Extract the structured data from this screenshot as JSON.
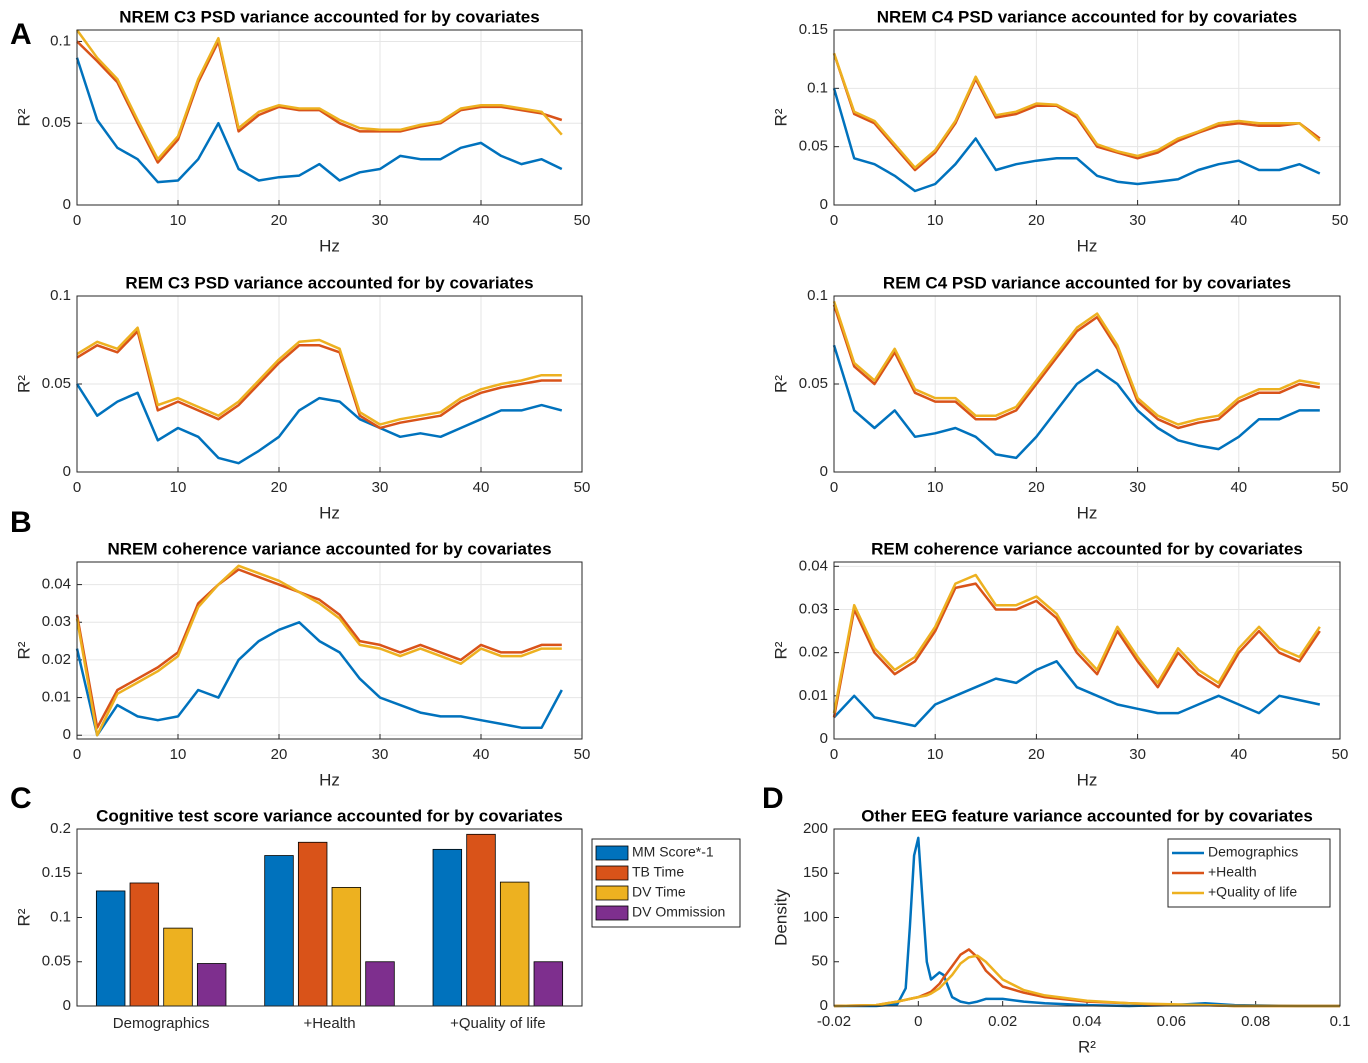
{
  "panel_labels": [
    "A",
    "B",
    "C",
    "D"
  ],
  "chart_data": [
    {
      "type": "line",
      "title": "NREM C3 PSD variance accounted for by covariates",
      "xlabel": "Hz",
      "ylabel": "R²",
      "grid": true,
      "xlim": [
        0,
        50
      ],
      "xticks": [
        0,
        10,
        20,
        30,
        40,
        50
      ],
      "ylim": [
        0,
        0.107
      ],
      "yticks": [
        0,
        0.05,
        0.1
      ],
      "x": [
        0,
        2,
        4,
        6,
        8,
        10,
        12,
        14,
        16,
        18,
        20,
        22,
        24,
        26,
        28,
        30,
        32,
        34,
        36,
        38,
        40,
        42,
        44,
        46,
        48
      ],
      "series": [
        {
          "color": "#0072BD",
          "values": [
            0.09,
            0.052,
            0.035,
            0.028,
            0.014,
            0.015,
            0.028,
            0.05,
            0.022,
            0.015,
            0.017,
            0.018,
            0.025,
            0.015,
            0.02,
            0.022,
            0.03,
            0.028,
            0.028,
            0.035,
            0.038,
            0.03,
            0.025,
            0.028,
            0.022
          ]
        },
        {
          "color": "#D95319",
          "values": [
            0.1,
            0.088,
            0.075,
            0.05,
            0.026,
            0.04,
            0.075,
            0.1,
            0.045,
            0.055,
            0.06,
            0.058,
            0.058,
            0.05,
            0.045,
            0.045,
            0.045,
            0.048,
            0.05,
            0.058,
            0.06,
            0.06,
            0.058,
            0.056,
            0.052
          ]
        },
        {
          "color": "#EDB120",
          "values": [
            0.107,
            0.09,
            0.077,
            0.052,
            0.028,
            0.042,
            0.077,
            0.102,
            0.047,
            0.057,
            0.061,
            0.059,
            0.059,
            0.052,
            0.047,
            0.046,
            0.046,
            0.049,
            0.051,
            0.059,
            0.061,
            0.061,
            0.059,
            0.057,
            0.043
          ]
        }
      ]
    },
    {
      "type": "line",
      "title": "NREM C4 PSD variance accounted for by covariates",
      "xlabel": "Hz",
      "ylabel": "R²",
      "grid": true,
      "xlim": [
        0,
        50
      ],
      "xticks": [
        0,
        10,
        20,
        30,
        40,
        50
      ],
      "ylim": [
        0,
        0.15
      ],
      "yticks": [
        0,
        0.05,
        0.1,
        0.15
      ],
      "x": [
        0,
        2,
        4,
        6,
        8,
        10,
        12,
        14,
        16,
        18,
        20,
        22,
        24,
        26,
        28,
        30,
        32,
        34,
        36,
        38,
        40,
        42,
        44,
        46,
        48
      ],
      "series": [
        {
          "color": "#0072BD",
          "values": [
            0.1,
            0.04,
            0.035,
            0.025,
            0.012,
            0.018,
            0.035,
            0.057,
            0.03,
            0.035,
            0.038,
            0.04,
            0.04,
            0.025,
            0.02,
            0.018,
            0.02,
            0.022,
            0.03,
            0.035,
            0.038,
            0.03,
            0.03,
            0.035,
            0.027
          ]
        },
        {
          "color": "#D95319",
          "values": [
            0.13,
            0.078,
            0.07,
            0.05,
            0.03,
            0.045,
            0.07,
            0.108,
            0.075,
            0.078,
            0.085,
            0.085,
            0.075,
            0.05,
            0.045,
            0.04,
            0.045,
            0.055,
            0.062,
            0.068,
            0.07,
            0.068,
            0.068,
            0.07,
            0.057
          ]
        },
        {
          "color": "#EDB120",
          "values": [
            0.13,
            0.08,
            0.072,
            0.052,
            0.032,
            0.047,
            0.072,
            0.11,
            0.077,
            0.08,
            0.087,
            0.086,
            0.077,
            0.052,
            0.046,
            0.042,
            0.047,
            0.057,
            0.063,
            0.07,
            0.072,
            0.07,
            0.07,
            0.07,
            0.055
          ]
        }
      ]
    },
    {
      "type": "line",
      "title": "REM C3 PSD variance accounted for by covariates",
      "xlabel": "Hz",
      "ylabel": "R²",
      "grid": true,
      "xlim": [
        0,
        50
      ],
      "xticks": [
        0,
        10,
        20,
        30,
        40,
        50
      ],
      "ylim": [
        0,
        0.1
      ],
      "yticks": [
        0,
        0.05,
        0.1
      ],
      "x": [
        0,
        2,
        4,
        6,
        8,
        10,
        12,
        14,
        16,
        18,
        20,
        22,
        24,
        26,
        28,
        30,
        32,
        34,
        36,
        38,
        40,
        42,
        44,
        46,
        48
      ],
      "series": [
        {
          "color": "#0072BD",
          "values": [
            0.05,
            0.032,
            0.04,
            0.045,
            0.018,
            0.025,
            0.02,
            0.008,
            0.005,
            0.012,
            0.02,
            0.035,
            0.042,
            0.04,
            0.03,
            0.025,
            0.02,
            0.022,
            0.02,
            0.025,
            0.03,
            0.035,
            0.035,
            0.038,
            0.035
          ]
        },
        {
          "color": "#D95319",
          "values": [
            0.065,
            0.072,
            0.068,
            0.08,
            0.035,
            0.04,
            0.035,
            0.03,
            0.038,
            0.05,
            0.062,
            0.072,
            0.072,
            0.068,
            0.032,
            0.025,
            0.028,
            0.03,
            0.032,
            0.04,
            0.045,
            0.048,
            0.05,
            0.052,
            0.052
          ]
        },
        {
          "color": "#EDB120",
          "values": [
            0.067,
            0.074,
            0.07,
            0.082,
            0.038,
            0.042,
            0.037,
            0.032,
            0.04,
            0.052,
            0.064,
            0.074,
            0.075,
            0.07,
            0.034,
            0.027,
            0.03,
            0.032,
            0.034,
            0.042,
            0.047,
            0.05,
            0.052,
            0.055,
            0.055
          ]
        }
      ]
    },
    {
      "type": "line",
      "title": "REM C4 PSD variance accounted for by covariates",
      "xlabel": "Hz",
      "ylabel": "R²",
      "grid": true,
      "xlim": [
        0,
        50
      ],
      "xticks": [
        0,
        10,
        20,
        30,
        40,
        50
      ],
      "ylim": [
        0,
        0.1
      ],
      "yticks": [
        0,
        0.05,
        0.1
      ],
      "x": [
        0,
        2,
        4,
        6,
        8,
        10,
        12,
        14,
        16,
        18,
        20,
        22,
        24,
        26,
        28,
        30,
        32,
        34,
        36,
        38,
        40,
        42,
        44,
        46,
        48
      ],
      "series": [
        {
          "color": "#0072BD",
          "values": [
            0.072,
            0.035,
            0.025,
            0.035,
            0.02,
            0.022,
            0.025,
            0.02,
            0.01,
            0.008,
            0.02,
            0.035,
            0.05,
            0.058,
            0.05,
            0.035,
            0.025,
            0.018,
            0.015,
            0.013,
            0.02,
            0.03,
            0.03,
            0.035,
            0.035
          ]
        },
        {
          "color": "#D95319",
          "values": [
            0.095,
            0.06,
            0.05,
            0.068,
            0.045,
            0.04,
            0.04,
            0.03,
            0.03,
            0.035,
            0.05,
            0.065,
            0.08,
            0.088,
            0.07,
            0.04,
            0.03,
            0.025,
            0.028,
            0.03,
            0.04,
            0.045,
            0.045,
            0.05,
            0.048
          ]
        },
        {
          "color": "#EDB120",
          "values": [
            0.097,
            0.062,
            0.052,
            0.07,
            0.047,
            0.042,
            0.042,
            0.032,
            0.032,
            0.037,
            0.052,
            0.067,
            0.082,
            0.09,
            0.072,
            0.042,
            0.032,
            0.027,
            0.03,
            0.032,
            0.042,
            0.047,
            0.047,
            0.052,
            0.05
          ]
        }
      ]
    },
    {
      "type": "line",
      "title": "NREM coherence variance accounted for by covariates",
      "xlabel": "Hz",
      "ylabel": "R²",
      "grid": true,
      "xlim": [
        0,
        50
      ],
      "xticks": [
        0,
        10,
        20,
        30,
        40,
        50
      ],
      "ylim": [
        -0.001,
        0.046
      ],
      "yticks": [
        0,
        0.01,
        0.02,
        0.03,
        0.04
      ],
      "x": [
        0,
        2,
        4,
        6,
        8,
        10,
        12,
        14,
        16,
        18,
        20,
        22,
        24,
        26,
        28,
        30,
        32,
        34,
        36,
        38,
        40,
        42,
        44,
        46,
        48
      ],
      "series": [
        {
          "color": "#0072BD",
          "values": [
            0.023,
            0.0,
            0.008,
            0.005,
            0.004,
            0.005,
            0.012,
            0.01,
            0.02,
            0.025,
            0.028,
            0.03,
            0.025,
            0.022,
            0.015,
            0.01,
            0.008,
            0.006,
            0.005,
            0.005,
            0.004,
            0.003,
            0.002,
            0.002,
            0.012
          ]
        },
        {
          "color": "#D95319",
          "values": [
            0.032,
            0.002,
            0.012,
            0.015,
            0.018,
            0.022,
            0.035,
            0.04,
            0.044,
            0.042,
            0.04,
            0.038,
            0.036,
            0.032,
            0.025,
            0.024,
            0.022,
            0.024,
            0.022,
            0.02,
            0.024,
            0.022,
            0.022,
            0.024,
            0.024
          ]
        },
        {
          "color": "#EDB120",
          "values": [
            0.031,
            0.0,
            0.011,
            0.014,
            0.017,
            0.021,
            0.034,
            0.04,
            0.045,
            0.043,
            0.041,
            0.038,
            0.035,
            0.031,
            0.024,
            0.023,
            0.021,
            0.023,
            0.021,
            0.019,
            0.023,
            0.021,
            0.021,
            0.023,
            0.023
          ]
        }
      ]
    },
    {
      "type": "line",
      "title": "REM coherence variance accounted for by covariates",
      "xlabel": "Hz",
      "ylabel": "R²",
      "grid": true,
      "xlim": [
        0,
        50
      ],
      "xticks": [
        0,
        10,
        20,
        30,
        40,
        50
      ],
      "ylim": [
        0,
        0.041
      ],
      "yticks": [
        0,
        0.01,
        0.02,
        0.03,
        0.04
      ],
      "x": [
        0,
        2,
        4,
        6,
        8,
        10,
        12,
        14,
        16,
        18,
        20,
        22,
        24,
        26,
        28,
        30,
        32,
        34,
        36,
        38,
        40,
        42,
        44,
        46,
        48
      ],
      "series": [
        {
          "color": "#0072BD",
          "values": [
            0.005,
            0.01,
            0.005,
            0.004,
            0.003,
            0.008,
            0.01,
            0.012,
            0.014,
            0.013,
            0.016,
            0.018,
            0.012,
            0.01,
            0.008,
            0.007,
            0.006,
            0.006,
            0.008,
            0.01,
            0.008,
            0.006,
            0.01,
            0.009,
            0.008
          ]
        },
        {
          "color": "#D95319",
          "values": [
            0.005,
            0.03,
            0.02,
            0.015,
            0.018,
            0.025,
            0.035,
            0.036,
            0.03,
            0.03,
            0.032,
            0.028,
            0.02,
            0.015,
            0.025,
            0.018,
            0.012,
            0.02,
            0.015,
            0.012,
            0.02,
            0.025,
            0.02,
            0.018,
            0.025
          ]
        },
        {
          "color": "#EDB120",
          "values": [
            0.006,
            0.031,
            0.021,
            0.016,
            0.019,
            0.026,
            0.036,
            0.038,
            0.031,
            0.031,
            0.033,
            0.029,
            0.021,
            0.016,
            0.026,
            0.019,
            0.013,
            0.021,
            0.016,
            0.013,
            0.021,
            0.026,
            0.021,
            0.019,
            0.026
          ]
        }
      ]
    },
    {
      "type": "bar",
      "title": "Cognitive test score variance accounted for by covariates",
      "ylabel": "R²",
      "grid": false,
      "legend": "eastoutside",
      "categories": [
        "Demographics",
        "+Health",
        "+Quality of life"
      ],
      "ylim": [
        0,
        0.2
      ],
      "yticks": [
        0,
        0.05,
        0.1,
        0.15,
        0.2
      ],
      "series": [
        {
          "name": "MM Score*-1",
          "color": "#0072BD",
          "values": [
            0.13,
            0.17,
            0.177
          ]
        },
        {
          "name": "TB Time",
          "color": "#D95319",
          "values": [
            0.139,
            0.185,
            0.194
          ]
        },
        {
          "name": "DV Time",
          "color": "#EDB120",
          "values": [
            0.088,
            0.134,
            0.14
          ]
        },
        {
          "name": "DV Ommission",
          "color": "#7E2F8E",
          "values": [
            0.048,
            0.05,
            0.05
          ]
        }
      ]
    },
    {
      "type": "line",
      "title": "Other EEG feature variance accounted for by covariates",
      "xlabel": "R²",
      "ylabel": "Density",
      "grid": false,
      "legend": "northeast",
      "xlim": [
        -0.02,
        0.1
      ],
      "xticks": [
        -0.02,
        0,
        0.02,
        0.04,
        0.06,
        0.08,
        0.1
      ],
      "ylim": [
        0,
        200
      ],
      "yticks": [
        0,
        50,
        100,
        150,
        200
      ],
      "x": [
        -0.02,
        -0.01,
        -0.005,
        -0.003,
        -0.002,
        -0.001,
        0,
        0.001,
        0.002,
        0.003,
        0.005,
        0.006,
        0.008,
        0.01,
        0.012,
        0.014,
        0.016,
        0.02,
        0.025,
        0.03,
        0.04,
        0.05,
        0.06,
        0.068,
        0.075,
        0.09,
        0.1
      ],
      "series": [
        {
          "name": "Demographics",
          "color": "#0072BD",
          "values": [
            0,
            0,
            2,
            20,
            90,
            170,
            190,
            120,
            50,
            30,
            38,
            35,
            10,
            5,
            3,
            5,
            8,
            8,
            5,
            3,
            1,
            0,
            1,
            3,
            1,
            0,
            0
          ]
        },
        {
          "name": "+Health",
          "color": "#D95319",
          "values": [
            0,
            1,
            5,
            7,
            8,
            9,
            10,
            12,
            14,
            16,
            25,
            32,
            45,
            58,
            64,
            55,
            40,
            22,
            15,
            10,
            5,
            3,
            1,
            1,
            0,
            0,
            0
          ]
        },
        {
          "name": "+Quality of life",
          "color": "#EDB120",
          "values": [
            0,
            1,
            5,
            7,
            8,
            9,
            10,
            11,
            12,
            14,
            20,
            25,
            35,
            48,
            55,
            57,
            50,
            30,
            18,
            12,
            6,
            3,
            2,
            1,
            0,
            0,
            0
          ]
        }
      ]
    }
  ]
}
